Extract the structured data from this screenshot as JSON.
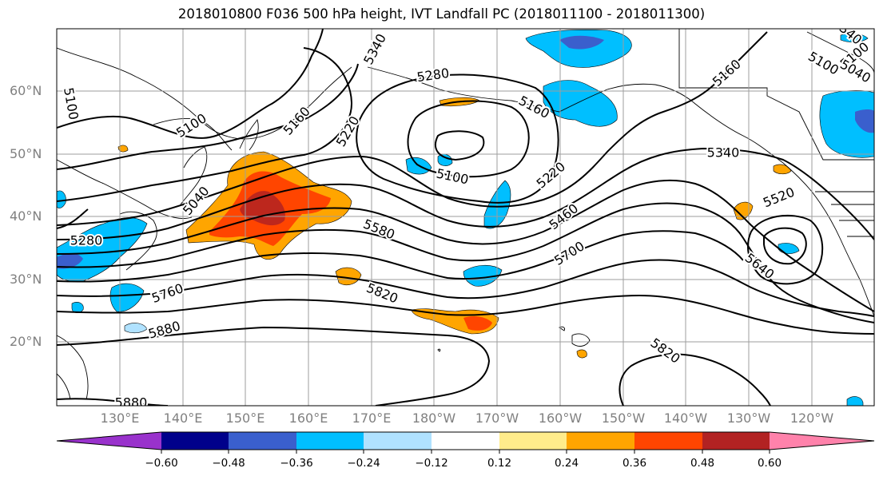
{
  "title": "2018010800 F036 500 hPa height, IVT Landfall PC (2018011100 - 2018011300)",
  "lat_labels": [
    "60°N",
    "50°N",
    "40°N",
    "30°N",
    "20°N"
  ],
  "lon_labels": [
    "130°E",
    "140°E",
    "150°E",
    "160°E",
    "170°E",
    "180°W",
    "170°W",
    "160°W",
    "150°W",
    "140°W",
    "130°W",
    "120°W"
  ],
  "contour_labels": [
    "5340",
    "5280",
    "5160",
    "5100",
    "5340",
    "5100",
    "5160",
    "5040",
    "5100",
    "5100",
    "5160",
    "5220",
    "5100",
    "5220",
    "5340",
    "5040",
    "5520",
    "5280",
    "5580",
    "5460",
    "5700",
    "5640",
    "5760",
    "5820",
    "5880",
    "5820",
    "5880"
  ],
  "colorbar": {
    "colors": [
      "#9932cc",
      "#00008b",
      "#3a5fcd",
      "#00bfff",
      "#b0e2ff",
      "#ffffff",
      "#ffec8b",
      "#ffa500",
      "#ff4500",
      "#b22222",
      "#ff82ab"
    ],
    "tick_labels": [
      "−0.60",
      "−0.48",
      "−0.36",
      "−0.24",
      "−0.12",
      "0.12",
      "0.24",
      "0.36",
      "0.48",
      "0.60"
    ]
  },
  "shading_colors": {
    "positive_low": "#ffa500",
    "positive_mid": "#ff4500",
    "positive_high": "#b22222",
    "negative_low": "#00bfff",
    "negative_mid": "#3a5fcd"
  }
}
